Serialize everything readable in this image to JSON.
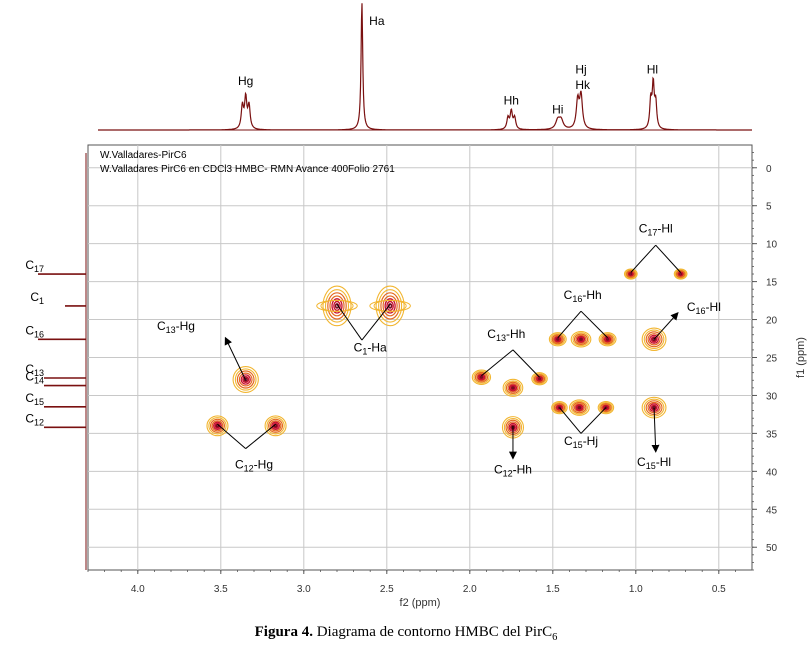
{
  "chart_data": {
    "type": "heatmap",
    "kind": "2D HMBC contour plot with 1D projections",
    "header_lines": [
      "W.Valladares-PirC6",
      "W.Valladares PirC6 en CDCl3 HMBC- RMN Avance 400Folio 2761"
    ],
    "xlabel": "f2 (ppm)",
    "ylabel": "f1 (ppm)",
    "xlim": [
      4.3,
      0.3
    ],
    "ylim": [
      -3,
      53
    ],
    "x_reversed": true,
    "y_reversed": true,
    "grid": true,
    "x_ticks": [
      "4.0",
      "3.5",
      "3.0",
      "2.5",
      "2.0",
      "1.5",
      "1.0",
      "0.5"
    ],
    "x_tick_values": [
      4.0,
      3.5,
      3.0,
      2.5,
      2.0,
      1.5,
      1.0,
      0.5
    ],
    "y_ticks": [
      "0",
      "5",
      "10",
      "15",
      "20",
      "25",
      "30",
      "35",
      "40",
      "45",
      "50"
    ],
    "y_tick_values": [
      0,
      5,
      10,
      15,
      20,
      25,
      30,
      35,
      40,
      45,
      50
    ],
    "colors": {
      "spectrum": "#7a1010",
      "contour_outer": "#f2b631",
      "contour_mid": "#e46a22",
      "contour_inner": "#c8102e",
      "contour_core": "#7a0a20",
      "grid": "#c8c8c8",
      "axis": "#555555"
    },
    "proton_spectrum": {
      "peaks": [
        {
          "ppm": 3.37,
          "height": 0.18,
          "width": 0.008
        },
        {
          "ppm": 3.35,
          "height": 0.24,
          "width": 0.008
        },
        {
          "ppm": 3.33,
          "height": 0.18,
          "width": 0.008
        },
        {
          "ppm": 2.65,
          "height": 1.0,
          "width": 0.006
        },
        {
          "ppm": 1.77,
          "height": 0.09,
          "width": 0.008
        },
        {
          "ppm": 1.75,
          "height": 0.14,
          "width": 0.008
        },
        {
          "ppm": 1.73,
          "height": 0.09,
          "width": 0.008
        },
        {
          "ppm": 1.47,
          "height": 0.07,
          "width": 0.015
        },
        {
          "ppm": 1.45,
          "height": 0.07,
          "width": 0.015
        },
        {
          "ppm": 1.35,
          "height": 0.22,
          "width": 0.01
        },
        {
          "ppm": 1.33,
          "height": 0.26,
          "width": 0.01
        },
        {
          "ppm": 0.91,
          "height": 0.22,
          "width": 0.007
        },
        {
          "ppm": 0.895,
          "height": 0.34,
          "width": 0.007
        },
        {
          "ppm": 0.88,
          "height": 0.2,
          "width": 0.007
        }
      ],
      "labels": [
        {
          "text": "Hg",
          "ppm": 3.35,
          "level": 0.35
        },
        {
          "text": "Ha",
          "ppm": 2.56,
          "level": 0.82
        },
        {
          "text": "Hh",
          "ppm": 1.75,
          "level": 0.2
        },
        {
          "text": "Hi",
          "ppm": 1.47,
          "level": 0.13
        },
        {
          "text": "Hj",
          "ppm": 1.33,
          "level": 0.44
        },
        {
          "text": "Hk",
          "ppm": 1.32,
          "level": 0.32
        },
        {
          "text": "Hl",
          "ppm": 0.9,
          "level": 0.44
        }
      ]
    },
    "carbon_projection": {
      "peaks": [
        {
          "ppm": 14.0,
          "height": 0.8
        },
        {
          "ppm": 18.2,
          "height": 0.35
        },
        {
          "ppm": 22.6,
          "height": 0.8
        },
        {
          "ppm": 27.7,
          "height": 0.7
        },
        {
          "ppm": 28.7,
          "height": 0.7
        },
        {
          "ppm": 31.5,
          "height": 0.7
        },
        {
          "ppm": 34.2,
          "height": 0.7
        }
      ],
      "labels": [
        {
          "main": "C",
          "sub": "17",
          "ppm": 14.0
        },
        {
          "main": "C",
          "sub": "1",
          "ppm": 18.2
        },
        {
          "main": "C",
          "sub": "16",
          "ppm": 22.6
        },
        {
          "main": "C",
          "sub": "13",
          "ppm": 27.7
        },
        {
          "main": "C",
          "sub": "14",
          "ppm": 28.7
        },
        {
          "main": "C",
          "sub": "15",
          "ppm": 31.5
        },
        {
          "main": "C",
          "sub": "12",
          "ppm": 34.2
        }
      ]
    },
    "cross_peaks": [
      {
        "x": 2.8,
        "y": 18.2,
        "size": 1.0,
        "stretch": 1.8
      },
      {
        "x": 2.48,
        "y": 18.2,
        "size": 1.0,
        "stretch": 1.8
      },
      {
        "x": 3.35,
        "y": 27.9,
        "size": 0.9,
        "stretch": 1.3
      },
      {
        "x": 3.52,
        "y": 34.0,
        "size": 0.75,
        "stretch": 1.2
      },
      {
        "x": 3.17,
        "y": 34.0,
        "size": 0.75,
        "stretch": 1.2
      },
      {
        "x": 1.93,
        "y": 27.6,
        "size": 0.65,
        "stretch": 1.0
      },
      {
        "x": 1.74,
        "y": 29.0,
        "size": 0.7,
        "stretch": 1.1
      },
      {
        "x": 1.58,
        "y": 27.8,
        "size": 0.55,
        "stretch": 1.0
      },
      {
        "x": 1.74,
        "y": 34.2,
        "size": 0.75,
        "stretch": 1.3
      },
      {
        "x": 1.47,
        "y": 22.6,
        "size": 0.6,
        "stretch": 1.0
      },
      {
        "x": 1.33,
        "y": 22.6,
        "size": 0.7,
        "stretch": 1.0
      },
      {
        "x": 1.17,
        "y": 22.6,
        "size": 0.6,
        "stretch": 1.0
      },
      {
        "x": 1.46,
        "y": 31.6,
        "size": 0.55,
        "stretch": 1.0
      },
      {
        "x": 1.34,
        "y": 31.6,
        "size": 0.7,
        "stretch": 1.0
      },
      {
        "x": 1.18,
        "y": 31.6,
        "size": 0.55,
        "stretch": 1.0
      },
      {
        "x": 1.03,
        "y": 14.0,
        "size": 0.45,
        "stretch": 1.0
      },
      {
        "x": 0.73,
        "y": 14.0,
        "size": 0.45,
        "stretch": 1.0
      },
      {
        "x": 0.89,
        "y": 22.6,
        "size": 0.85,
        "stretch": 1.2
      },
      {
        "x": 0.89,
        "y": 31.6,
        "size": 0.85,
        "stretch": 1.1
      }
    ],
    "annotations": [
      {
        "main": "C",
        "sub": "13",
        "rest": "-Hg",
        "lx": 3.77,
        "ly": 21.4,
        "lines": [
          {
            "x1": 3.35,
            "y1": 28.0,
            "x2": 3.47,
            "y2": 22.5,
            "arrow": true
          }
        ]
      },
      {
        "main": "C",
        "sub": "1",
        "rest": "-Ha",
        "lx": 2.6,
        "ly": 24.2,
        "lines": [
          {
            "x1": 2.8,
            "y1": 18.0,
            "x2": 2.65,
            "y2": 22.7,
            "arrow": false
          },
          {
            "x1": 2.48,
            "y1": 18.0,
            "x2": 2.65,
            "y2": 22.7,
            "arrow": false
          }
        ]
      },
      {
        "main": "C",
        "sub": "12",
        "rest": "-Hg",
        "lx": 3.3,
        "ly": 39.6,
        "lines": [
          {
            "x1": 3.52,
            "y1": 33.8,
            "x2": 3.35,
            "y2": 37.0,
            "arrow": false
          },
          {
            "x1": 3.17,
            "y1": 33.8,
            "x2": 3.35,
            "y2": 37.0,
            "arrow": false
          }
        ]
      },
      {
        "main": "C",
        "sub": "13",
        "rest": "-Hh",
        "lx": 1.78,
        "ly": 22.4,
        "lines": [
          {
            "x1": 1.93,
            "y1": 27.4,
            "x2": 1.74,
            "y2": 24.0,
            "arrow": false
          },
          {
            "x1": 1.58,
            "y1": 27.6,
            "x2": 1.74,
            "y2": 24.0,
            "arrow": false
          }
        ]
      },
      {
        "main": "C",
        "sub": "12",
        "rest": "-Hh",
        "lx": 1.74,
        "ly": 40.3,
        "lines": [
          {
            "x1": 1.74,
            "y1": 34.0,
            "x2": 1.74,
            "y2": 38.2,
            "arrow": true
          }
        ]
      },
      {
        "main": "C",
        "sub": "16",
        "rest": "-Hh",
        "lx": 1.32,
        "ly": 17.3,
        "lines": [
          {
            "x1": 1.47,
            "y1": 22.4,
            "x2": 1.33,
            "y2": 18.9,
            "arrow": false
          },
          {
            "x1": 1.17,
            "y1": 22.4,
            "x2": 1.33,
            "y2": 18.9,
            "arrow": false
          }
        ]
      },
      {
        "main": "C",
        "sub": "15",
        "rest": "-Hj",
        "lx": 1.33,
        "ly": 36.5,
        "lines": [
          {
            "x1": 1.46,
            "y1": 31.6,
            "x2": 1.33,
            "y2": 35.0,
            "arrow": false
          },
          {
            "x1": 1.18,
            "y1": 31.6,
            "x2": 1.33,
            "y2": 35.0,
            "arrow": false
          }
        ]
      },
      {
        "main": "C",
        "sub": "17",
        "rest": "-Hl",
        "lx": 0.88,
        "ly": 8.5,
        "lines": [
          {
            "x1": 1.03,
            "y1": 13.8,
            "x2": 0.88,
            "y2": 10.2,
            "arrow": false
          },
          {
            "x1": 0.73,
            "y1": 13.8,
            "x2": 0.88,
            "y2": 10.2,
            "arrow": false
          }
        ]
      },
      {
        "main": "C",
        "sub": "16",
        "rest": "-Hl",
        "lx": 0.59,
        "ly": 18.9,
        "lines": [
          {
            "x1": 0.89,
            "y1": 22.6,
            "x2": 0.75,
            "y2": 19.2,
            "arrow": true
          }
        ]
      },
      {
        "main": "C",
        "sub": "15",
        "rest": "-Hl",
        "lx": 0.89,
        "ly": 39.3,
        "lines": [
          {
            "x1": 0.89,
            "y1": 31.6,
            "x2": 0.88,
            "y2": 37.3,
            "arrow": true
          }
        ]
      }
    ]
  },
  "caption": {
    "label": "Figura 4.",
    "text": "Diagrama de contorno HMBC  del PirC",
    "sub": "6"
  }
}
